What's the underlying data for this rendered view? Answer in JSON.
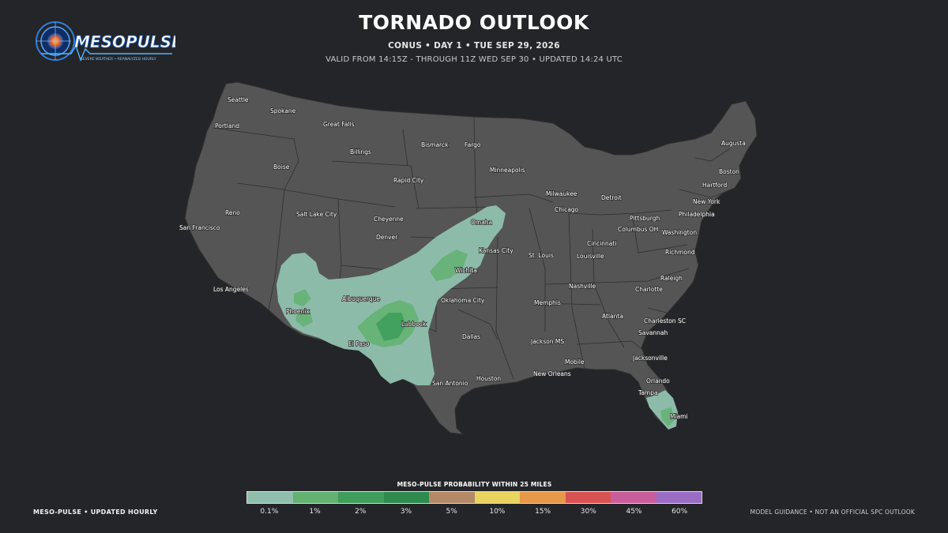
{
  "header": {
    "title": "TORNADO OUTLOOK",
    "subtitle": "CONUS • DAY 1 • TUE SEP 29, 2026",
    "validity": "VALID FROM 14:15Z - THROUGH 11Z WED SEP 30 • UPDATED 14:24 UTC"
  },
  "logo": {
    "name": "MESOPULSE",
    "tagline": "SEVERE WEATHER • REANALYZED HOURLY"
  },
  "map": {
    "land_color": "#555555",
    "border_color": "#2f2f2f",
    "cities": [
      "Seattle",
      "Spokane",
      "Portland",
      "Great Falls",
      "Billings",
      "Boise",
      "Bismarck",
      "Fargo",
      "Minneapolis",
      "Rapid City",
      "Reno",
      "Salt Lake City",
      "Cheyenne",
      "Denver",
      "San Francisco",
      "Omaha",
      "Kansas City",
      "Wichita",
      "Los Angeles",
      "Albuquerque",
      "Phoenix",
      "Oklahoma City",
      "Lubbock",
      "El Paso",
      "Dallas",
      "San Antonio",
      "Houston",
      "Augusta",
      "Boston",
      "Hartford",
      "New York",
      "Philadelphia",
      "Washington",
      "Richmond",
      "Milwaukee",
      "Detroit",
      "Chicago",
      "Pittsburgh",
      "Columbus OH",
      "Cincinnati",
      "Louisville",
      "St. Louis",
      "Nashville",
      "Memphis",
      "Raleigh",
      "Charlotte",
      "Atlanta",
      "Charleston SC",
      "Savannah",
      "Jackson MS",
      "Mobile",
      "New Orleans",
      "Jacksonville",
      "Orlando",
      "Tampa",
      "Miami"
    ]
  },
  "legend": {
    "title": "MESO-PULSE PROBABILITY WITHIN 25 MILES",
    "levels": [
      {
        "label": "0.1%",
        "color": "#8fbfac"
      },
      {
        "label": "1%",
        "color": "#63b272"
      },
      {
        "label": "2%",
        "color": "#3f9e5c"
      },
      {
        "label": "3%",
        "color": "#2e8a4e"
      },
      {
        "label": "5%",
        "color": "#b48a66"
      },
      {
        "label": "10%",
        "color": "#e8d45e"
      },
      {
        "label": "15%",
        "color": "#e79848"
      },
      {
        "label": "30%",
        "color": "#d85252"
      },
      {
        "label": "45%",
        "color": "#c95c9a"
      },
      {
        "label": "60%",
        "color": "#9a6cc4"
      }
    ]
  },
  "footer": {
    "left": "MESO-PULSE • UPDATED HOURLY",
    "right": "MODEL GUIDANCE • NOT AN OFFICIAL SPC OUTLOOK"
  }
}
